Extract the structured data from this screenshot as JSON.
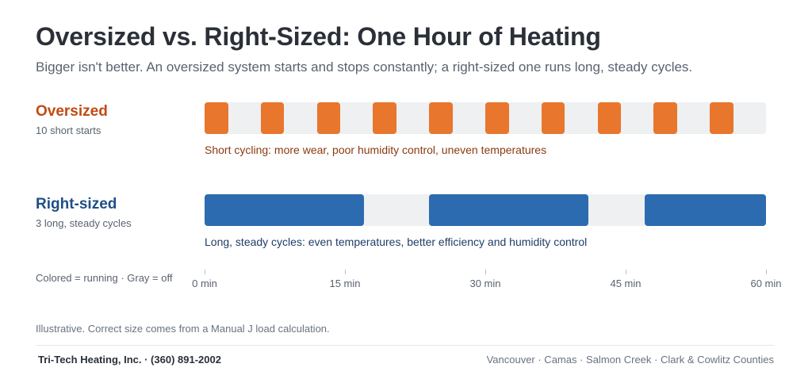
{
  "title": "Oversized vs. Right-Sized: One Hour of Heating",
  "subtitle": "Bigger isn't better. An oversized system starts and stops constantly; a right-sized one runs long, steady cycles.",
  "colors": {
    "oversized": "#e8762d",
    "oversized_label": "#c24a12",
    "oversized_note": "#8a3a10",
    "right_sized": "#2d6bb0",
    "right_sized_label": "#1f4f86",
    "right_sized_note": "#1f3d66",
    "off": "#eef0f2"
  },
  "chart_data": {
    "type": "timeline",
    "x_unit": "min",
    "xlim": [
      0,
      60
    ],
    "rows": [
      {
        "label": "Oversized",
        "sublabel": "10 short starts",
        "note": "Short cycling: more wear, poor humidity control, uneven temperatures",
        "running_intervals": [
          [
            0,
            2.5
          ],
          [
            6,
            8.5
          ],
          [
            12,
            14.5
          ],
          [
            18,
            20.5
          ],
          [
            24,
            26.5
          ],
          [
            30,
            32.5
          ],
          [
            36,
            38.5
          ],
          [
            42,
            44.5
          ],
          [
            48,
            50.5
          ],
          [
            54,
            56.5
          ]
        ]
      },
      {
        "label": "Right-sized",
        "sublabel": "3 long, steady cycles",
        "note": "Long, steady cycles: even temperatures, better efficiency and humidity control",
        "running_intervals": [
          [
            0,
            17
          ],
          [
            24,
            41
          ],
          [
            47,
            60
          ]
        ]
      }
    ],
    "ticks": [
      {
        "value": 0,
        "label": "0 min"
      },
      {
        "value": 15,
        "label": "15 min"
      },
      {
        "value": 30,
        "label": "30 min"
      },
      {
        "value": 45,
        "label": "45 min"
      },
      {
        "value": 60,
        "label": "60 min"
      }
    ],
    "legend": "Colored = running · Gray = off"
  },
  "footnote": "Illustrative. Correct size comes from a Manual J load calculation.",
  "footer": {
    "company": "Tri-Tech Heating, Inc. · (360) 891-2002",
    "areas": "Vancouver · Camas · Salmon Creek · Clark & Cowlitz Counties"
  }
}
